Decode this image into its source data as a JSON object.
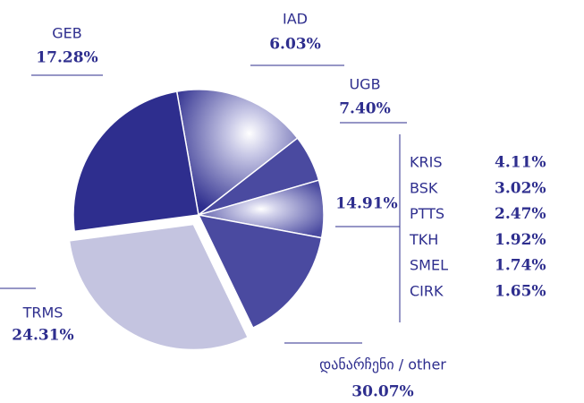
{
  "chart_data": {
    "type": "pie",
    "categories": [
      "GEB",
      "IAD",
      "UGB",
      null,
      "დანარჩენი / other",
      "TRMS"
    ],
    "values": [
      17.28,
      6.03,
      7.4,
      14.91,
      30.07,
      24.31
    ],
    "value_labels": [
      "17.28%",
      "6.03%",
      "7.40%",
      "14.91%",
      "30.07%",
      "24.31%"
    ],
    "colors": [
      "#2e2e8e",
      "#4a4aa0",
      "#4a4aa0",
      "#4a4aa0",
      "#c4c4e0",
      "#2e2e8e"
    ],
    "exploded": [
      false,
      false,
      false,
      false,
      true,
      false
    ],
    "breakdown": {
      "categories": [
        "KRIS",
        "BSK",
        "PTTS",
        "TKH",
        "SMEL",
        "CIRK"
      ],
      "values": [
        4.11,
        3.02,
        2.47,
        1.92,
        1.74,
        1.65
      ],
      "value_labels": [
        "4.11%",
        "3.02%",
        "2.47%",
        "1.92%",
        "1.74%",
        "1.65%"
      ]
    }
  }
}
